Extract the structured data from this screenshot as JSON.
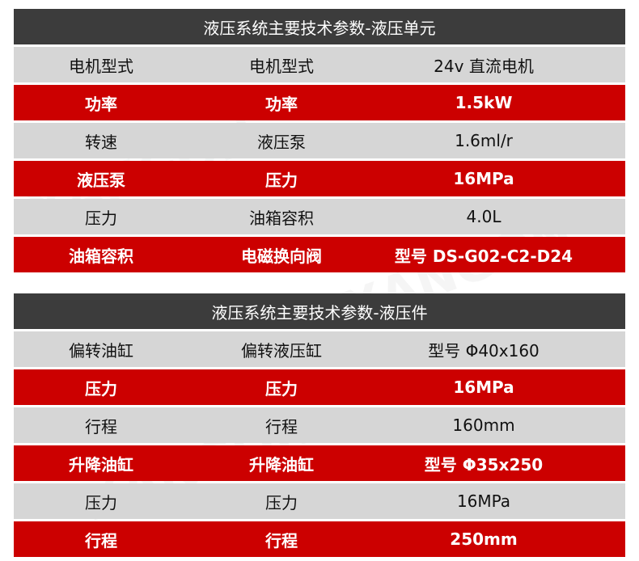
{
  "tables": [
    {
      "title": "液压系统主要技术参数-液压单元",
      "rows": [
        [
          "电机型式",
          "电机型式",
          "24v 直流电机"
        ],
        [
          "功率",
          "功率",
          "1.5kW"
        ],
        [
          "转速",
          "液压泵",
          "1.6ml/r"
        ],
        [
          "液压泵",
          "压力",
          "16MPa"
        ],
        [
          "压力",
          "油箱容积",
          "4.0L"
        ],
        [
          "油箱容积",
          "电磁换向阀",
          "型号 DS-G02-C2-D24"
        ]
      ]
    },
    {
      "title": "液压系统主要技术参数-液压件",
      "rows": [
        [
          "偏转油缸",
          "偏转液压缸",
          "型号 Φ40x160"
        ],
        [
          "压力",
          "压力",
          "16MPa"
        ],
        [
          "行程",
          "行程",
          "160mm"
        ],
        [
          "升降油缸",
          "升降油缸",
          "型号 Φ35x250"
        ],
        [
          "压力",
          "压力",
          "16MPa"
        ],
        [
          "行程",
          "行程",
          "250mm"
        ]
      ]
    }
  ],
  "watermark": "XANGON",
  "colors": {
    "header": "#3c3c3c",
    "row_gray": "#d6d6d6",
    "row_red": "#cc0000"
  }
}
